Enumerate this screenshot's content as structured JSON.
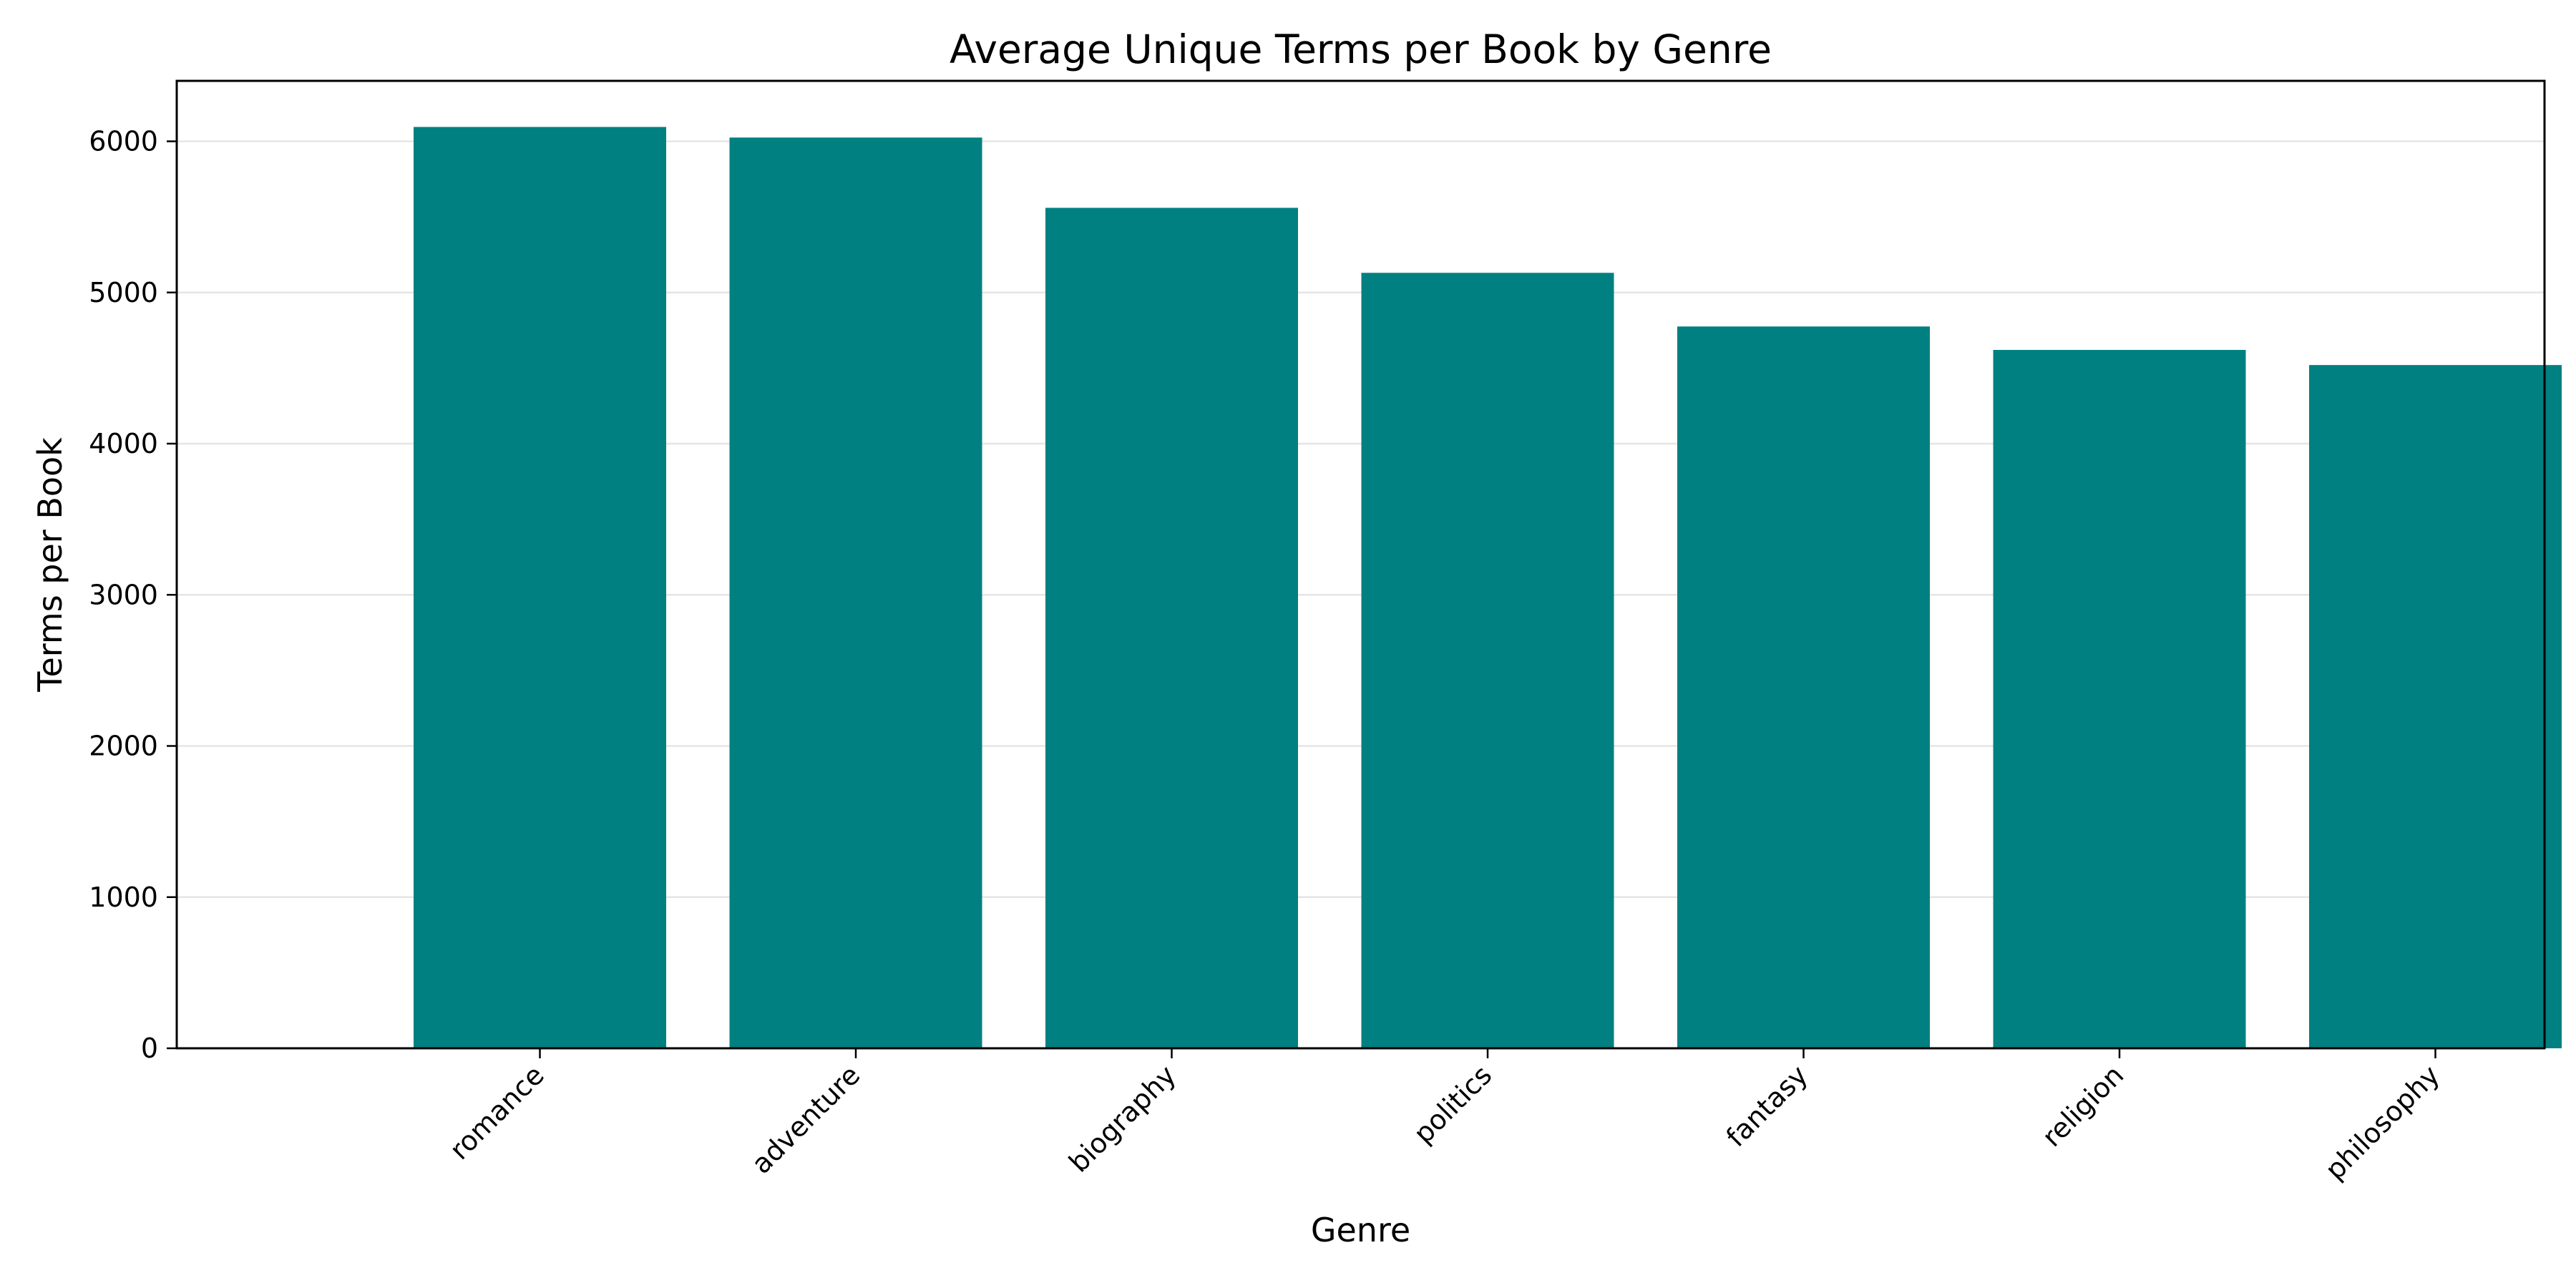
{
  "chart_data": {
    "type": "bar",
    "title": "Average Unique Terms per Book by Genre",
    "xlabel": "Genre",
    "ylabel": "Terms per Book",
    "categories": [
      "romance",
      "adventure",
      "biography",
      "politics",
      "fantasy",
      "religion",
      "philosophy"
    ],
    "values": [
      6095,
      6025,
      5560,
      5130,
      4775,
      4620,
      4520
    ],
    "ylim": [
      0,
      6400
    ],
    "yticks": [
      0,
      1000,
      2000,
      3000,
      4000,
      5000,
      6000
    ],
    "ytick_labels": [
      "0",
      "1000",
      "2000",
      "3000",
      "4000",
      "5000",
      "6000"
    ],
    "grid": "y",
    "bar_color": "#008080",
    "x_tick_rotation": "45"
  }
}
